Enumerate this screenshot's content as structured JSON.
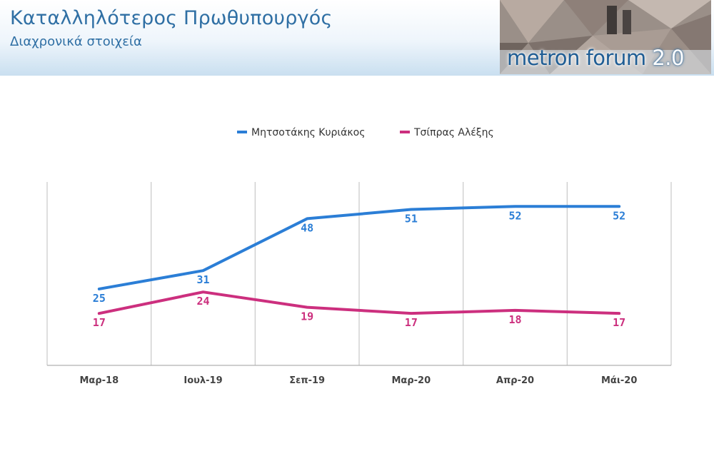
{
  "header": {
    "title": "Καταλληλότερος Πρωθυπουργός",
    "subtitle": "Διαχρονικά στοιχεία"
  },
  "logo": {
    "text": "metron forum",
    "version": "2.0"
  },
  "chart_data": {
    "type": "line",
    "categories": [
      "Μαρ-18",
      "Ιουλ-19",
      "Σεπ-19",
      "Μαρ-20",
      "Απρ-20",
      "Μάι-20"
    ],
    "series": [
      {
        "name": "Μητσοτάκης Κυριάκος",
        "color": "#2b7ed6",
        "values": [
          25,
          31,
          48,
          51,
          52,
          52
        ]
      },
      {
        "name": "Τσίπρας Αλέξης",
        "color": "#cc2f7e",
        "values": [
          17,
          24,
          19,
          17,
          18,
          17
        ]
      }
    ],
    "ylim": [
      0,
      60
    ],
    "grid": "vertical",
    "legend_position": "top-center",
    "data_labels": true
  }
}
